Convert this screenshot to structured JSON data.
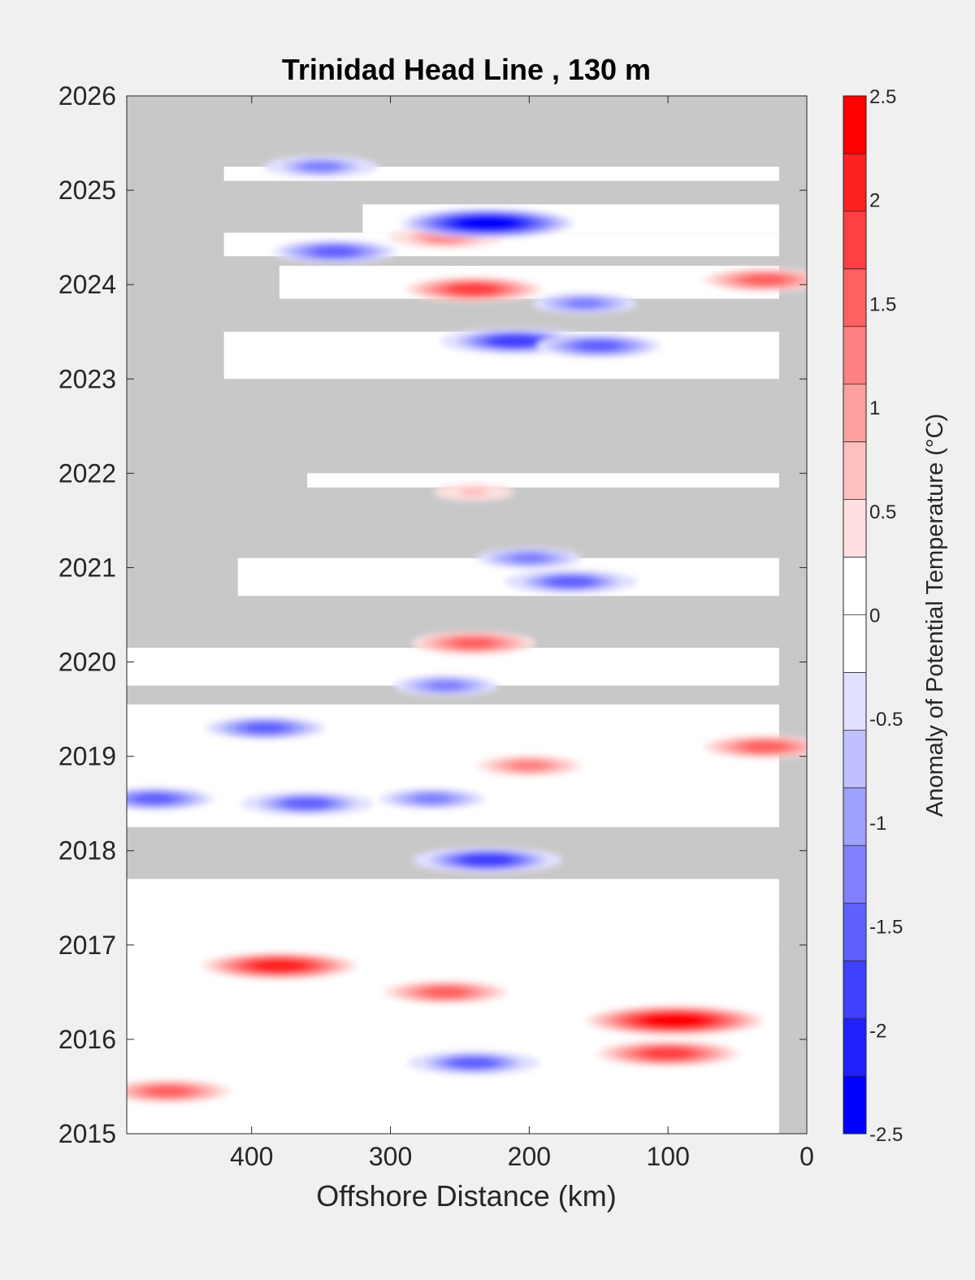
{
  "chart_data": {
    "type": "heatmap",
    "title": "Trinidad Head Line , 130 m",
    "xlabel": "Offshore Distance (km)",
    "ylabel": "",
    "xlim": [
      490,
      0
    ],
    "ylim": [
      2015,
      2026
    ],
    "x_ticks": [
      400,
      300,
      200,
      100,
      0
    ],
    "y_ticks": [
      2015,
      2016,
      2017,
      2018,
      2019,
      2020,
      2021,
      2022,
      2023,
      2024,
      2025,
      2026
    ],
    "colorbar": {
      "label": "Anomaly of Potential Temperature (°C)",
      "limits": [
        -2.5,
        2.5
      ],
      "ticks": [
        -2.5,
        -2,
        -1.5,
        -1,
        -0.5,
        0,
        0.5,
        1,
        1.5,
        2,
        2.5
      ],
      "colors": [
        "#0000ff",
        "#2020ff",
        "#4040ff",
        "#6060ff",
        "#8080ff",
        "#a0a0ff",
        "#c0c0ff",
        "#e0e0ff",
        "#ffffff",
        "#ffffff",
        "#ffe0e0",
        "#ffc0c0",
        "#ffa0a0",
        "#ff8080",
        "#ff6060",
        "#ff4040",
        "#ff2020",
        "#ff0000"
      ]
    },
    "no_data_color": "#c8c8c8",
    "data_coverage": [
      {
        "t0": 2015.0,
        "t1": 2015.25,
        "x_max": 490
      },
      {
        "t0": 2015.25,
        "t1": 2017.0,
        "x_max": 490
      },
      {
        "t0": 2017.0,
        "t1": 2017.7,
        "x_max": 490
      },
      {
        "t0": 2018.25,
        "t1": 2019.55,
        "x_max": 490
      },
      {
        "t0": 2019.75,
        "t1": 2020.15,
        "x_max": 490
      },
      {
        "t0": 2020.7,
        "t1": 2021.1,
        "x_max": 410
      },
      {
        "t0": 2021.85,
        "t1": 2022.0,
        "x_max": 360
      },
      {
        "t0": 2023.0,
        "t1": 2023.5,
        "x_max": 420
      },
      {
        "t0": 2023.85,
        "t1": 2024.2,
        "x_max": 380
      },
      {
        "t0": 2024.3,
        "t1": 2024.55,
        "x_max": 420
      },
      {
        "t0": 2024.55,
        "t1": 2024.85,
        "x_max": 320
      },
      {
        "t0": 2025.1,
        "t1": 2025.25,
        "x_max": 420
      }
    ],
    "anomaly_features": [
      {
        "x": 95,
        "t": 2016.2,
        "value": 2.4
      },
      {
        "x": 380,
        "t": 2016.78,
        "value": 2.0
      },
      {
        "x": 260,
        "t": 2016.5,
        "value": 1.5
      },
      {
        "x": 100,
        "t": 2015.85,
        "value": 1.8
      },
      {
        "x": 460,
        "t": 2015.45,
        "value": 1.5
      },
      {
        "x": 30,
        "t": 2019.1,
        "value": 1.5
      },
      {
        "x": 200,
        "t": 2018.9,
        "value": 1.2
      },
      {
        "x": 240,
        "t": 2020.2,
        "value": 1.5
      },
      {
        "x": 240,
        "t": 2023.95,
        "value": 1.7
      },
      {
        "x": 30,
        "t": 2024.05,
        "value": 1.5
      },
      {
        "x": 260,
        "t": 2024.5,
        "value": 1.3
      },
      {
        "x": 240,
        "t": 2021.8,
        "value": 0.8
      },
      {
        "x": 240,
        "t": 2015.75,
        "value": -1.6
      },
      {
        "x": 230,
        "t": 2024.65,
        "value": -2.3
      },
      {
        "x": 210,
        "t": 2023.4,
        "value": -1.9
      },
      {
        "x": 150,
        "t": 2023.35,
        "value": -1.5
      },
      {
        "x": 230,
        "t": 2017.9,
        "value": -1.9
      },
      {
        "x": 360,
        "t": 2018.5,
        "value": -1.6
      },
      {
        "x": 470,
        "t": 2018.55,
        "value": -1.4
      },
      {
        "x": 390,
        "t": 2019.3,
        "value": -1.4
      },
      {
        "x": 270,
        "t": 2018.55,
        "value": -1.2
      },
      {
        "x": 260,
        "t": 2019.75,
        "value": -1.2
      },
      {
        "x": 170,
        "t": 2020.85,
        "value": -1.6
      },
      {
        "x": 200,
        "t": 2021.1,
        "value": -1.2
      },
      {
        "x": 350,
        "t": 2025.25,
        "value": -1.3
      },
      {
        "x": 340,
        "t": 2024.35,
        "value": -1.5
      },
      {
        "x": 160,
        "t": 2023.8,
        "value": -1.2
      }
    ]
  }
}
